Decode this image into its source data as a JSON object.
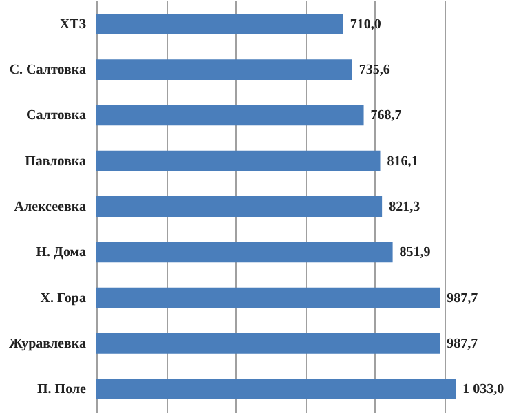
{
  "chart_data": {
    "type": "bar",
    "orientation": "horizontal",
    "categories": [
      "ХТЗ",
      "С. Салтовка",
      "Салтовка",
      "Павловка",
      "Алексеевка",
      "Н. Дома",
      "Х. Гора",
      "Журавлевка",
      "П. Поле"
    ],
    "values": [
      710.0,
      735.6,
      768.7,
      816.1,
      821.3,
      851.9,
      987.7,
      987.7,
      1033.0
    ],
    "value_labels": [
      "710,0",
      "735,6",
      "768,7",
      "816,1",
      "821,3",
      "851,9",
      "987,7",
      "987,7",
      "1 033,0"
    ],
    "color": "#4a7ebb",
    "tick_labels": "y",
    "grid": "x"
  }
}
